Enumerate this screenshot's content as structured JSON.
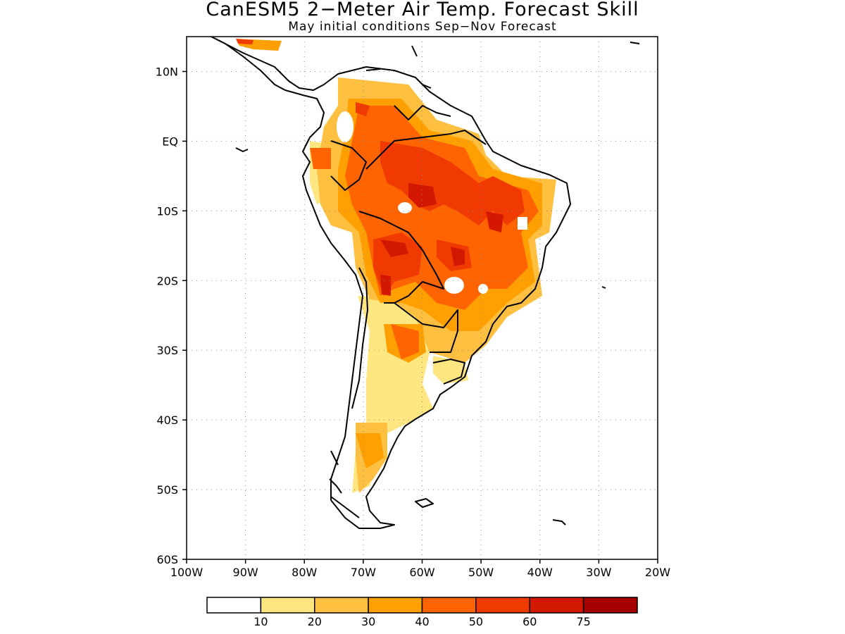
{
  "title": "CanESM5 2−Meter Air Temp. Forecast Skill",
  "subtitle": "May initial conditions  Sep−Nov Forecast",
  "map": {
    "lon_range": [
      -100,
      -20
    ],
    "lat_range": [
      -60,
      15
    ],
    "lon_ticks": [
      {
        "lon": -100,
        "label": "100W"
      },
      {
        "lon": -90,
        "label": "90W"
      },
      {
        "lon": -80,
        "label": "80W"
      },
      {
        "lon": -70,
        "label": "70W"
      },
      {
        "lon": -60,
        "label": "60W"
      },
      {
        "lon": -50,
        "label": "50W"
      },
      {
        "lon": -40,
        "label": "40W"
      },
      {
        "lon": -30,
        "label": "30W"
      },
      {
        "lon": -20,
        "label": "20W"
      }
    ],
    "lat_ticks": [
      {
        "lat": 10,
        "label": "10N"
      },
      {
        "lat": 0,
        "label": "EQ"
      },
      {
        "lat": -10,
        "label": "10S"
      },
      {
        "lat": -20,
        "label": "20S"
      },
      {
        "lat": -30,
        "label": "30S"
      },
      {
        "lat": -40,
        "label": "40S"
      },
      {
        "lat": -50,
        "label": "50S"
      },
      {
        "lat": -60,
        "label": "60S"
      }
    ],
    "gridlines": "dotted",
    "coastline_color": "#000000"
  },
  "colorbar": {
    "bins": [
      {
        "color": "#ffffff",
        "label": ""
      },
      {
        "color": "#ffe680",
        "label": "10"
      },
      {
        "color": "#ffbf40",
        "label": "20"
      },
      {
        "color": "#ffa000",
        "label": "30"
      },
      {
        "color": "#ff6400",
        "label": "40"
      },
      {
        "color": "#f03a00",
        "label": "50"
      },
      {
        "color": "#d41800",
        "label": "60"
      },
      {
        "color": "#a50000",
        "label": "75"
      }
    ]
  }
}
